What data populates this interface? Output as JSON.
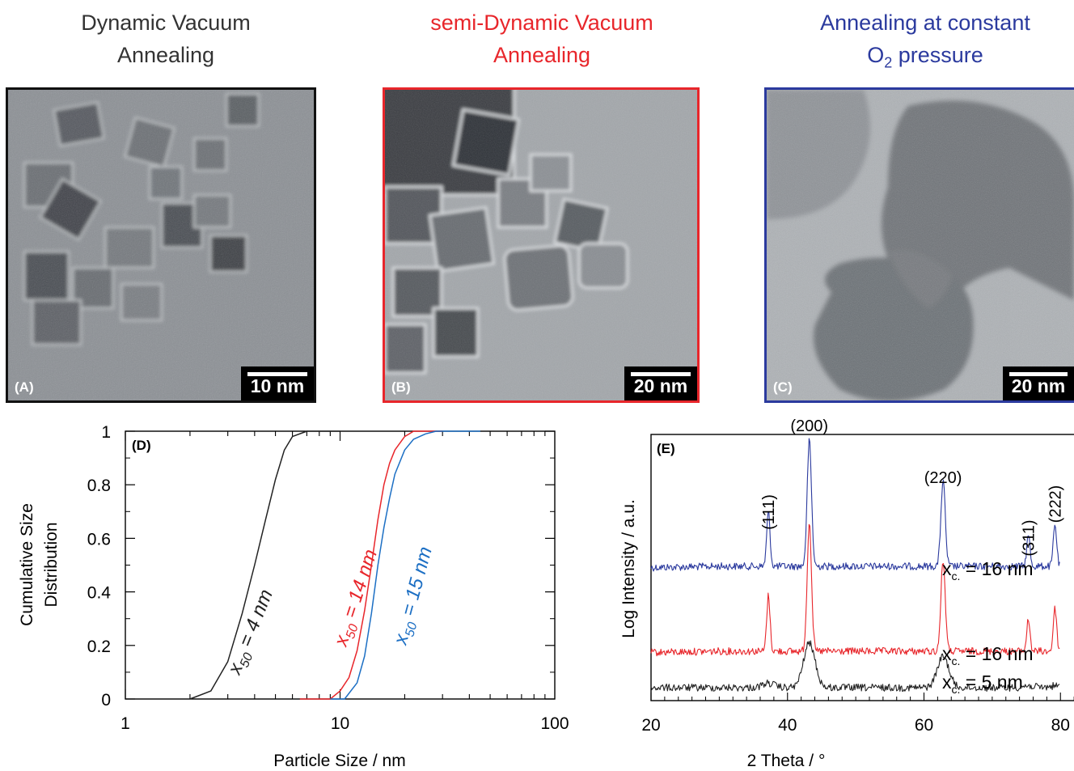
{
  "panels": {
    "A": {
      "title_line1": "Dynamic Vacuum",
      "title_line2": "Annealing",
      "label": "(A)",
      "scale_bar": "10 nm",
      "color": "#333333"
    },
    "B": {
      "title_line1": "semi-Dynamic Vacuum",
      "title_line2": "Annealing",
      "label": "(B)",
      "scale_bar": "20 nm",
      "color": "#e8262b"
    },
    "C": {
      "title_line1": "Annealing at constant",
      "title_line2_main": "O",
      "title_line2_sub": "2",
      "title_line2_rest": " pressure",
      "label": "(C)",
      "scale_bar": "20 nm",
      "color": "#2b3a9e"
    }
  },
  "chart_data": [
    {
      "panel": "(D)",
      "type": "line",
      "xlabel": "Particle Size / nm",
      "ylabel_line1": "Cumulative Size",
      "ylabel_line2": "Distribution",
      "x_scale": "log",
      "xlim": [
        1,
        100
      ],
      "ylim": [
        0,
        1
      ],
      "x_ticks": [
        "1",
        "10",
        "100"
      ],
      "y_ticks": [
        "0",
        "0.2",
        "0.4",
        "0.6",
        "0.8",
        "1"
      ],
      "series": [
        {
          "name": "x50 = 4 nm",
          "label_main": "x",
          "label_sub": "50",
          "label_rest": " = 4 nm",
          "color": "#222222",
          "x50": 4,
          "x_start": 2.0,
          "x_end": 10.0,
          "x": [
            2.0,
            2.5,
            3.0,
            3.5,
            4.0,
            4.5,
            5.0,
            5.5,
            6.0,
            7.0,
            10.0
          ],
          "y": [
            0.0,
            0.03,
            0.14,
            0.32,
            0.5,
            0.67,
            0.82,
            0.93,
            0.98,
            1.0,
            1.0
          ]
        },
        {
          "name": "x50 = 14 nm",
          "label_main": "x",
          "label_sub": "50",
          "label_rest": " = 14 nm",
          "color": "#e8262b",
          "x50": 14,
          "x_start": 6.5,
          "x_end": 30.0,
          "x": [
            6.5,
            9.0,
            10.0,
            11.0,
            12.0,
            13.0,
            14.0,
            15.0,
            16.0,
            17.0,
            18.0,
            20.0,
            22.0,
            30.0
          ],
          "y": [
            0.0,
            0.0,
            0.03,
            0.08,
            0.18,
            0.33,
            0.5,
            0.67,
            0.8,
            0.88,
            0.93,
            0.98,
            1.0,
            1.0
          ]
        },
        {
          "name": "x50 = 15 nm",
          "label_main": "x",
          "label_sub": "50",
          "label_rest": " = 15 nm",
          "color": "#1c6fc4",
          "x50": 15,
          "x_start": 9.0,
          "x_end": 45.0,
          "x": [
            9.0,
            10.5,
            12.0,
            13.0,
            14.0,
            15.0,
            16.0,
            17.0,
            18.0,
            20.0,
            22.0,
            25.0,
            28.0,
            45.0
          ],
          "y": [
            0.0,
            0.0,
            0.06,
            0.16,
            0.32,
            0.5,
            0.64,
            0.75,
            0.84,
            0.93,
            0.97,
            0.99,
            1.0,
            1.0
          ]
        }
      ]
    },
    {
      "panel": "(E)",
      "type": "line",
      "xlabel": "2 Theta / °",
      "ylabel": "Log Intensity / a.u.",
      "xlim": [
        20,
        80
      ],
      "x_ticks": [
        "20",
        "40",
        "60",
        "80"
      ],
      "peaks": [
        {
          "label": "(111)",
          "two_theta": 37.2
        },
        {
          "label": "(200)",
          "two_theta": 43.2
        },
        {
          "label": "(220)",
          "two_theta": 62.8
        },
        {
          "label": "(311)",
          "two_theta": 75.3
        },
        {
          "label": "(222)",
          "two_theta": 79.2
        }
      ],
      "series": [
        {
          "name": "xc. = 16 nm",
          "label_main": "x",
          "label_sub": "c.",
          "label_rest": " = 16 nm",
          "color": "#2b3a9e",
          "panel_ref": "C",
          "peak_heights": [
            0.43,
            1.0,
            0.68,
            0.24,
            0.33
          ]
        },
        {
          "name": "xc. = 16 nm",
          "label_main": "x",
          "label_sub": "c.",
          "label_rest": " = 16 nm",
          "color": "#e8262b",
          "panel_ref": "B",
          "peak_heights": [
            0.43,
            1.0,
            0.7,
            0.24,
            0.33
          ]
        },
        {
          "name": "xc. = 5 nm",
          "label_main": "x",
          "label_sub": "c.",
          "label_rest": " = 5 nm",
          "color": "#222222",
          "panel_ref": "A",
          "peak_heights": [
            0.05,
            0.5,
            0.35,
            0.02,
            0.02
          ]
        }
      ]
    }
  ]
}
